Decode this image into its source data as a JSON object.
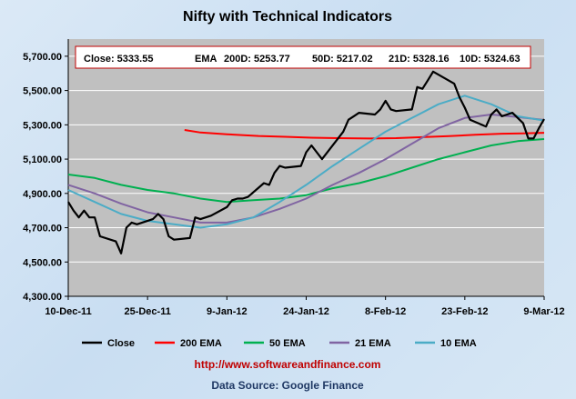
{
  "chart_data": {
    "type": "line",
    "title": "Nifty with Technical Indicators",
    "xlabel": "",
    "ylabel": "",
    "x_ticks": [
      "10-Dec-11",
      "25-Dec-11",
      "9-Jan-12",
      "24-Jan-12",
      "8-Feb-12",
      "23-Feb-12",
      "9-Mar-12"
    ],
    "x_range": [
      "2011-12-10",
      "2012-03-09"
    ],
    "y_ticks": [
      "4,300.00",
      "4,500.00",
      "4,700.00",
      "4,900.00",
      "5,100.00",
      "5,300.00",
      "5,500.00",
      "5,700.00"
    ],
    "ylim": [
      4300,
      5800
    ],
    "grid": "horizontal",
    "legend_position": "bottom",
    "summary_box": {
      "close": "Close: 5333.55",
      "ema": "EMA",
      "d200": "200D: 5253.77",
      "d50": "50D: 5217.02",
      "d21": "21D: 5328.16",
      "d10": "10D: 5324.63"
    },
    "series": [
      {
        "name": "Close",
        "color": "#000000",
        "x": [
          "2011-12-10",
          "2011-12-11",
          "2011-12-12",
          "2011-12-13",
          "2011-12-14",
          "2011-12-15",
          "2011-12-16",
          "2011-12-19",
          "2011-12-20",
          "2011-12-21",
          "2011-12-22",
          "2011-12-23",
          "2011-12-26",
          "2011-12-27",
          "2011-12-28",
          "2011-12-29",
          "2011-12-30",
          "2012-01-02",
          "2012-01-03",
          "2012-01-04",
          "2012-01-05",
          "2012-01-06",
          "2012-01-09",
          "2012-01-10",
          "2012-01-11",
          "2012-01-12",
          "2012-01-13",
          "2012-01-16",
          "2012-01-17",
          "2012-01-18",
          "2012-01-19",
          "2012-01-20",
          "2012-01-23",
          "2012-01-24",
          "2012-01-25",
          "2012-01-27",
          "2012-01-30",
          "2012-01-31",
          "2012-02-01",
          "2012-02-02",
          "2012-02-03",
          "2012-02-06",
          "2012-02-07",
          "2012-02-08",
          "2012-02-09",
          "2012-02-10",
          "2012-02-13",
          "2012-02-14",
          "2012-02-15",
          "2012-02-16",
          "2012-02-17",
          "2012-02-21",
          "2012-02-22",
          "2012-02-23",
          "2012-02-24",
          "2012-02-27",
          "2012-02-28",
          "2012-02-29",
          "2012-03-01",
          "2012-03-02",
          "2012-03-03",
          "2012-03-05",
          "2012-03-06",
          "2012-03-07",
          "2012-03-08",
          "2012-03-09"
        ],
        "values": [
          4850,
          4800,
          4760,
          4800,
          4760,
          4760,
          4650,
          4620,
          4550,
          4700,
          4730,
          4720,
          4750,
          4780,
          4750,
          4650,
          4630,
          4640,
          4760,
          4750,
          4760,
          4770,
          4820,
          4860,
          4870,
          4870,
          4880,
          4960,
          4950,
          5020,
          5060,
          5050,
          5060,
          5140,
          5180,
          5100,
          5220,
          5260,
          5330,
          5350,
          5370,
          5360,
          5390,
          5440,
          5390,
          5380,
          5390,
          5520,
          5510,
          5560,
          5610,
          5540,
          5460,
          5400,
          5330,
          5290,
          5360,
          5390,
          5350,
          5360,
          5370,
          5310,
          5220,
          5220,
          5280,
          5333.55
        ]
      },
      {
        "name": "200 EMA",
        "color": "#ff0000",
        "x": [
          "2012-01-01",
          "2012-01-04",
          "2012-01-09",
          "2012-01-15",
          "2012-01-20",
          "2012-01-25",
          "2012-01-30",
          "2012-02-05",
          "2012-02-10",
          "2012-02-15",
          "2012-02-20",
          "2012-02-25",
          "2012-03-01",
          "2012-03-05",
          "2012-03-09"
        ],
        "values": [
          5270,
          5255,
          5245,
          5235,
          5230,
          5225,
          5222,
          5220,
          5222,
          5228,
          5234,
          5242,
          5248,
          5250,
          5253.77
        ]
      },
      {
        "name": "50 EMA",
        "color": "#00b050",
        "x": [
          "2011-12-10",
          "2011-12-15",
          "2011-12-20",
          "2011-12-25",
          "2011-12-30",
          "2012-01-04",
          "2012-01-09",
          "2012-01-14",
          "2012-01-19",
          "2012-01-24",
          "2012-01-29",
          "2012-02-03",
          "2012-02-08",
          "2012-02-13",
          "2012-02-18",
          "2012-02-23",
          "2012-02-28",
          "2012-03-04",
          "2012-03-09"
        ],
        "values": [
          5010,
          4990,
          4950,
          4920,
          4900,
          4870,
          4850,
          4860,
          4870,
          4890,
          4930,
          4960,
          5000,
          5050,
          5100,
          5140,
          5180,
          5205,
          5217.02
        ]
      },
      {
        "name": "21 EMA",
        "color": "#8064a2",
        "x": [
          "2011-12-10",
          "2011-12-15",
          "2011-12-20",
          "2011-12-25",
          "2011-12-30",
          "2012-01-04",
          "2012-01-09",
          "2012-01-14",
          "2012-01-19",
          "2012-01-24",
          "2012-01-29",
          "2012-02-03",
          "2012-02-08",
          "2012-02-13",
          "2012-02-18",
          "2012-02-23",
          "2012-02-28",
          "2012-03-04",
          "2012-03-09"
        ],
        "values": [
          4950,
          4900,
          4840,
          4790,
          4760,
          4730,
          4730,
          4760,
          4810,
          4870,
          4950,
          5020,
          5100,
          5190,
          5280,
          5340,
          5360,
          5345,
          5328.16
        ]
      },
      {
        "name": "10 EMA",
        "color": "#4bacc6",
        "x": [
          "2011-12-10",
          "2011-12-15",
          "2011-12-20",
          "2011-12-25",
          "2011-12-30",
          "2012-01-04",
          "2012-01-09",
          "2012-01-14",
          "2012-01-19",
          "2012-01-24",
          "2012-01-29",
          "2012-02-03",
          "2012-02-08",
          "2012-02-13",
          "2012-02-18",
          "2012-02-23",
          "2012-02-28",
          "2012-03-04",
          "2012-03-09"
        ],
        "values": [
          4920,
          4850,
          4780,
          4740,
          4720,
          4700,
          4720,
          4760,
          4850,
          4950,
          5060,
          5160,
          5260,
          5340,
          5420,
          5470,
          5420,
          5350,
          5324.63
        ]
      }
    ],
    "url_text": "http://www.softwareandfinance.com",
    "source_text": "Data Source: Google Finance",
    "colors": {
      "plot_bg": "#c0c0c0",
      "grid": "#ffffff",
      "url": "#c00000",
      "source": "#1f3864",
      "box_border": "#c00000"
    }
  }
}
